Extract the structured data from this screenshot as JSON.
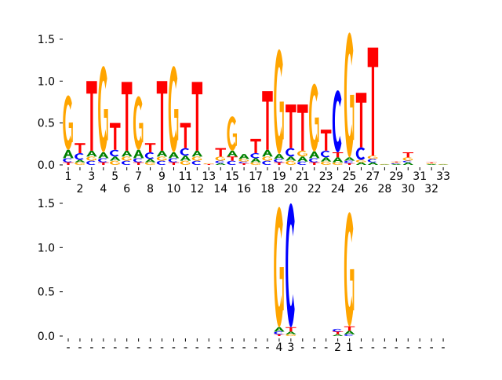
{
  "chart_data": [
    {
      "type": "sequence-logo",
      "title": "",
      "ylim": [
        0,
        1.6
      ],
      "yticks": [
        "0.0",
        "0.5",
        "1.0",
        "1.5"
      ],
      "ytick_values": [
        0,
        0.5,
        1.0,
        1.5
      ],
      "xtick_labels": [
        "1",
        "2",
        "3",
        "4",
        "5",
        "6",
        "7",
        "8",
        "9",
        "10",
        "11",
        "12",
        "13",
        "14",
        "15",
        "16",
        "17",
        "18",
        "19",
        "20",
        "21",
        "22",
        "23",
        "24",
        "25",
        "26",
        "27",
        "28",
        "29",
        "30",
        "31",
        "32",
        "33"
      ],
      "colors": {
        "A": "#008000",
        "C": "#0000ff",
        "G": "#ffa500",
        "T": "#ff0000"
      },
      "positions": [
        [
          [
            "T",
            0.03
          ],
          [
            "C",
            0.05
          ],
          [
            "A",
            0.1
          ],
          [
            "G",
            0.65
          ]
        ],
        [
          [
            "G",
            0.03
          ],
          [
            "A",
            0.03
          ],
          [
            "C",
            0.08
          ],
          [
            "T",
            0.12
          ]
        ],
        [
          [
            "C",
            0.05
          ],
          [
            "G",
            0.05
          ],
          [
            "A",
            0.07
          ],
          [
            "T",
            0.83
          ]
        ],
        [
          [
            "T",
            0.03
          ],
          [
            "C",
            0.05
          ],
          [
            "A",
            0.07
          ],
          [
            "G",
            1.03
          ]
        ],
        [
          [
            "G",
            0.05
          ],
          [
            "A",
            0.05
          ],
          [
            "C",
            0.08
          ],
          [
            "T",
            0.32
          ]
        ],
        [
          [
            "C",
            0.05
          ],
          [
            "G",
            0.05
          ],
          [
            "A",
            0.07
          ],
          [
            "T",
            0.82
          ]
        ],
        [
          [
            "T",
            0.03
          ],
          [
            "C",
            0.05
          ],
          [
            "A",
            0.1
          ],
          [
            "G",
            0.64
          ]
        ],
        [
          [
            "G",
            0.03
          ],
          [
            "A",
            0.04
          ],
          [
            "C",
            0.08
          ],
          [
            "T",
            0.11
          ]
        ],
        [
          [
            "C",
            0.05
          ],
          [
            "G",
            0.05
          ],
          [
            "A",
            0.07
          ],
          [
            "T",
            0.83
          ]
        ],
        [
          [
            "T",
            0.03
          ],
          [
            "C",
            0.05
          ],
          [
            "A",
            0.07
          ],
          [
            "G",
            1.03
          ]
        ],
        [
          [
            "G",
            0.05
          ],
          [
            "A",
            0.06
          ],
          [
            "C",
            0.09
          ],
          [
            "T",
            0.3
          ]
        ],
        [
          [
            "C",
            0.05
          ],
          [
            "G",
            0.05
          ],
          [
            "A",
            0.07
          ],
          [
            "T",
            0.82
          ]
        ],
        [
          [
            "T",
            0.01
          ],
          [
            "G",
            0.01
          ]
        ],
        [
          [
            "A",
            0.02
          ],
          [
            "C",
            0.03
          ],
          [
            "G",
            0.05
          ],
          [
            "T",
            0.1
          ]
        ],
        [
          [
            "C",
            0.05
          ],
          [
            "T",
            0.05
          ],
          [
            "A",
            0.07
          ],
          [
            "G",
            0.41
          ]
        ],
        [
          [
            "T",
            0.02
          ],
          [
            "C",
            0.02
          ],
          [
            "G",
            0.03
          ],
          [
            "A",
            0.06
          ]
        ],
        [
          [
            "G",
            0.03
          ],
          [
            "A",
            0.05
          ],
          [
            "C",
            0.06
          ],
          [
            "T",
            0.17
          ]
        ],
        [
          [
            "C",
            0.05
          ],
          [
            "G",
            0.05
          ],
          [
            "A",
            0.08
          ],
          [
            "T",
            0.7
          ]
        ],
        [
          [
            "T",
            0.03
          ],
          [
            "C",
            0.04
          ],
          [
            "A",
            0.06
          ],
          [
            "G",
            1.25
          ]
        ],
        [
          [
            "G",
            0.05
          ],
          [
            "A",
            0.05
          ],
          [
            "C",
            0.1
          ],
          [
            "T",
            0.52
          ]
        ],
        [
          [
            "C",
            0.04
          ],
          [
            "A",
            0.06
          ],
          [
            "G",
            0.07
          ],
          [
            "T",
            0.55
          ]
        ],
        [
          [
            "T",
            0.03
          ],
          [
            "C",
            0.05
          ],
          [
            "A",
            0.08
          ],
          [
            "G",
            0.81
          ]
        ],
        [
          [
            "G",
            0.04
          ],
          [
            "A",
            0.05
          ],
          [
            "C",
            0.08
          ],
          [
            "T",
            0.25
          ]
        ],
        [
          [
            "G",
            0.03
          ],
          [
            "A",
            0.06
          ],
          [
            "T",
            0.06
          ],
          [
            "C",
            0.74
          ]
        ],
        [
          [
            "T",
            0.02
          ],
          [
            "C",
            0.03
          ],
          [
            "A",
            0.04
          ],
          [
            "G",
            1.49
          ]
        ],
        [
          [
            "A",
            0.03
          ],
          [
            "G",
            0.03
          ],
          [
            "C",
            0.15
          ],
          [
            "T",
            0.65
          ]
        ],
        [
          [
            "A",
            0.03
          ],
          [
            "C",
            0.04
          ],
          [
            "G",
            0.04
          ],
          [
            "T",
            1.29
          ]
        ],
        [
          [
            "A",
            0.005
          ],
          [
            "G",
            0.005
          ]
        ],
        [
          [
            "A",
            0.01
          ],
          [
            "C",
            0.01
          ],
          [
            "G",
            0.01
          ],
          [
            "T",
            0.01
          ]
        ],
        [
          [
            "A",
            0.03
          ],
          [
            "C",
            0.02
          ],
          [
            "G",
            0.04
          ],
          [
            "T",
            0.06
          ]
        ],
        [],
        [
          [
            "A",
            0.01
          ],
          [
            "G",
            0.01
          ],
          [
            "T",
            0.01
          ]
        ],
        [
          [
            "A",
            0.005
          ],
          [
            "G",
            0.005
          ]
        ]
      ]
    },
    {
      "type": "sequence-logo",
      "title": "",
      "ylim": [
        0,
        1.55
      ],
      "yticks": [
        "0.0",
        "0.5",
        "1.0",
        "1.5"
      ],
      "ytick_values": [
        0,
        0.5,
        1.0,
        1.5
      ],
      "xtick_labels": [
        "-",
        "-",
        "-",
        "-",
        "-",
        "-",
        "-",
        "-",
        "-",
        "-",
        "-",
        "-",
        "-",
        "-",
        "-",
        "-",
        "-",
        "-",
        "4",
        "3",
        "-",
        "-",
        "-",
        "2",
        "1",
        "-",
        "-",
        "-",
        "-",
        "-",
        "-",
        "-",
        "-"
      ],
      "colors": {
        "A": "#008000",
        "C": "#0000ff",
        "G": "#ffa500",
        "T": "#ff0000"
      },
      "positions": [
        [],
        [],
        [],
        [],
        [],
        [],
        [],
        [],
        [],
        [],
        [],
        [],
        [],
        [],
        [],
        [],
        [],
        [],
        [
          [
            "T",
            0.02
          ],
          [
            "C",
            0.03
          ],
          [
            "A",
            0.05
          ],
          [
            "G",
            1.36
          ]
        ],
        [
          [
            "G",
            0.02
          ],
          [
            "A",
            0.03
          ],
          [
            "T",
            0.05
          ],
          [
            "C",
            1.4
          ]
        ],
        [],
        [],
        [],
        [
          [
            "A",
            0.02
          ],
          [
            "T",
            0.03
          ],
          [
            "C",
            0.03
          ]
        ],
        [
          [
            "C",
            0.02
          ],
          [
            "A",
            0.04
          ],
          [
            "T",
            0.05
          ],
          [
            "G",
            1.29
          ]
        ],
        [],
        [],
        [],
        [],
        [],
        [],
        [],
        []
      ]
    }
  ]
}
